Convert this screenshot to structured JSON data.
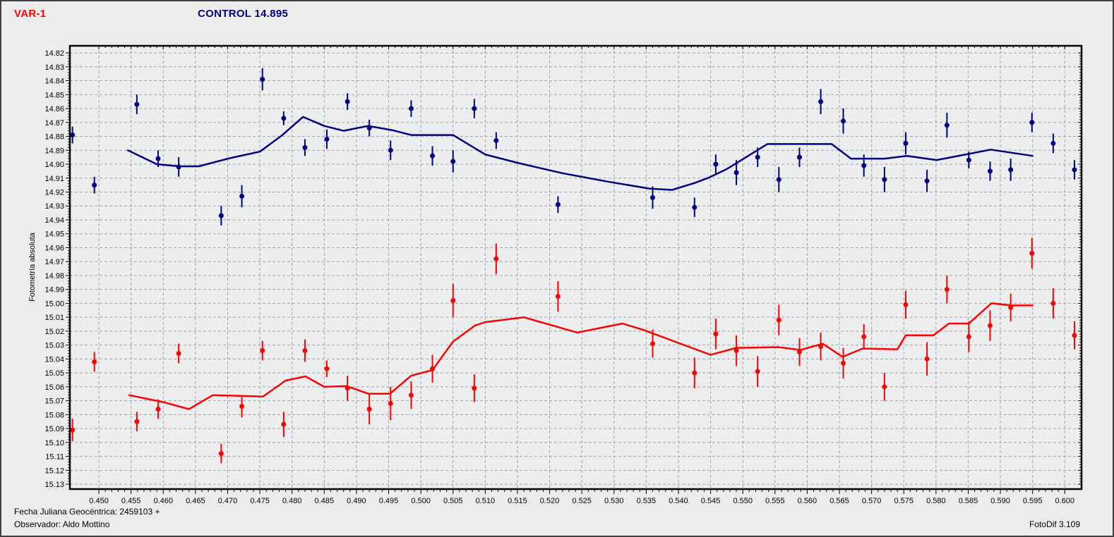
{
  "header": {
    "var_label": "VAR-1",
    "control_label": "CONTROL 14.895"
  },
  "footer": {
    "julian_date_line": "Fecha Juliana Geocéntrica: 2459103 +",
    "observer_line": "Observador: Aldo Mottino",
    "app_version": "FotoDif 3.109"
  },
  "colors": {
    "var_series": "#FF0000",
    "control_series": "#000080",
    "grid": "#A3A3A3",
    "axis": "#000000",
    "window_bg": "#ECECEC",
    "plot_bg": "#ECEDEE"
  },
  "chart_data": {
    "type": "scatter",
    "title": "",
    "xlabel": "",
    "ylabel": "Fotometría absoluta",
    "grid": true,
    "legend_position": "none",
    "x_axis": {
      "label_min": 0.45,
      "label_max": 0.6,
      "label_step": 0.005,
      "minor_step": 0.001,
      "display_min": 0.4455,
      "display_max": 0.6026,
      "tick_label_format": "3-decimals"
    },
    "y_axis": {
      "label_min": 14.82,
      "label_max": 15.13,
      "label_step": 0.01,
      "minor_step": 0.002,
      "display_min": 14.8149,
      "display_max": 15.1335,
      "inverted_magnitude_scale": true,
      "tick_label_format": "2-decimals"
    },
    "series": [
      {
        "key": "control",
        "name": "CONTROL 14.895",
        "color": "#000080",
        "points": [
          [
            0.4459,
            14.879,
            0.006
          ],
          [
            0.4493,
            14.915,
            0.006
          ],
          [
            0.4559,
            14.857,
            0.007
          ],
          [
            0.4592,
            14.896,
            0.006
          ],
          [
            0.4624,
            14.902,
            0.007
          ],
          [
            0.469,
            14.937,
            0.007
          ],
          [
            0.4722,
            14.923,
            0.008
          ],
          [
            0.4754,
            14.839,
            0.008
          ],
          [
            0.4787,
            14.867,
            0.005
          ],
          [
            0.482,
            14.888,
            0.006
          ],
          [
            0.4854,
            14.882,
            0.007
          ],
          [
            0.4886,
            14.855,
            0.006
          ],
          [
            0.492,
            14.874,
            0.006
          ],
          [
            0.4953,
            14.89,
            0.007
          ],
          [
            0.4985,
            14.86,
            0.006
          ],
          [
            0.5018,
            14.894,
            0.007
          ],
          [
            0.505,
            14.898,
            0.008
          ],
          [
            0.5083,
            14.86,
            0.007
          ],
          [
            0.5117,
            14.883,
            0.006
          ],
          [
            0.5213,
            14.929,
            0.006
          ],
          [
            0.536,
            14.924,
            0.008
          ],
          [
            0.5425,
            14.931,
            0.007
          ],
          [
            0.5458,
            14.9,
            0.007
          ],
          [
            0.549,
            14.906,
            0.009
          ],
          [
            0.5523,
            14.895,
            0.007
          ],
          [
            0.5556,
            14.911,
            0.009
          ],
          [
            0.5588,
            14.895,
            0.007
          ],
          [
            0.5621,
            14.855,
            0.009
          ],
          [
            0.5656,
            14.869,
            0.009
          ],
          [
            0.5688,
            14.901,
            0.008
          ],
          [
            0.572,
            14.911,
            0.009
          ],
          [
            0.5753,
            14.885,
            0.008
          ],
          [
            0.5786,
            14.912,
            0.008
          ],
          [
            0.5817,
            14.872,
            0.009
          ],
          [
            0.5851,
            14.897,
            0.006
          ],
          [
            0.5884,
            14.905,
            0.007
          ],
          [
            0.5916,
            14.904,
            0.008
          ],
          [
            0.5949,
            14.87,
            0.007
          ],
          [
            0.5982,
            14.885,
            0.007
          ],
          [
            0.6015,
            14.904,
            0.007
          ]
        ],
        "mean_line": [
          [
            0.4545,
            14.89
          ],
          [
            0.459,
            14.9
          ],
          [
            0.4625,
            14.9015
          ],
          [
            0.4655,
            14.9015
          ],
          [
            0.4705,
            14.8955
          ],
          [
            0.475,
            14.891
          ],
          [
            0.4785,
            14.879
          ],
          [
            0.4817,
            14.866
          ],
          [
            0.485,
            14.8725
          ],
          [
            0.488,
            14.876
          ],
          [
            0.4918,
            14.8725
          ],
          [
            0.4955,
            14.8755
          ],
          [
            0.4985,
            14.879
          ],
          [
            0.505,
            14.879
          ],
          [
            0.51,
            14.893
          ],
          [
            0.515,
            14.899
          ],
          [
            0.522,
            14.9065
          ],
          [
            0.529,
            14.9125
          ],
          [
            0.5355,
            14.9175
          ],
          [
            0.539,
            14.9185
          ],
          [
            0.5425,
            14.9135
          ],
          [
            0.5448,
            14.9095
          ],
          [
            0.5475,
            14.9035
          ],
          [
            0.5538,
            14.8855
          ],
          [
            0.5638,
            14.8855
          ],
          [
            0.5668,
            14.896
          ],
          [
            0.572,
            14.896
          ],
          [
            0.5755,
            14.894
          ],
          [
            0.5801,
            14.897
          ],
          [
            0.5885,
            14.8895
          ],
          [
            0.595,
            14.894
          ]
        ]
      },
      {
        "key": "var",
        "name": "VAR-1",
        "color": "#FF0000",
        "points": [
          [
            0.4459,
            15.091,
            0.008
          ],
          [
            0.4493,
            15.042,
            0.007
          ],
          [
            0.4559,
            15.085,
            0.007
          ],
          [
            0.4592,
            15.076,
            0.007
          ],
          [
            0.4624,
            15.036,
            0.007
          ],
          [
            0.469,
            15.108,
            0.007
          ],
          [
            0.4722,
            15.074,
            0.008
          ],
          [
            0.4754,
            15.034,
            0.007
          ],
          [
            0.4787,
            15.087,
            0.009
          ],
          [
            0.482,
            15.034,
            0.008
          ],
          [
            0.4854,
            15.047,
            0.006
          ],
          [
            0.4886,
            15.061,
            0.009
          ],
          [
            0.492,
            15.076,
            0.011
          ],
          [
            0.4953,
            15.072,
            0.012
          ],
          [
            0.4985,
            15.066,
            0.01
          ],
          [
            0.5018,
            15.047,
            0.01
          ],
          [
            0.505,
            14.998,
            0.012
          ],
          [
            0.5083,
            15.061,
            0.01
          ],
          [
            0.5117,
            14.968,
            0.011
          ],
          [
            0.5213,
            14.995,
            0.011
          ],
          [
            0.536,
            15.029,
            0.01
          ],
          [
            0.5425,
            15.05,
            0.011
          ],
          [
            0.5458,
            15.022,
            0.011
          ],
          [
            0.549,
            15.034,
            0.011
          ],
          [
            0.5523,
            15.049,
            0.011
          ],
          [
            0.5556,
            15.012,
            0.011
          ],
          [
            0.5588,
            15.035,
            0.01
          ],
          [
            0.5621,
            15.031,
            0.01
          ],
          [
            0.5656,
            15.043,
            0.011
          ],
          [
            0.5688,
            15.024,
            0.009
          ],
          [
            0.572,
            15.06,
            0.01
          ],
          [
            0.5753,
            15.001,
            0.01
          ],
          [
            0.5786,
            15.04,
            0.012
          ],
          [
            0.5817,
            14.99,
            0.01
          ],
          [
            0.5851,
            15.024,
            0.011
          ],
          [
            0.5884,
            15.016,
            0.011
          ],
          [
            0.5916,
            15.003,
            0.01
          ],
          [
            0.5949,
            14.964,
            0.011
          ],
          [
            0.5982,
            15.0,
            0.011
          ],
          [
            0.6015,
            15.023,
            0.01
          ]
        ],
        "mean_line": [
          [
            0.4547,
            15.066
          ],
          [
            0.46,
            15.071
          ],
          [
            0.464,
            15.076
          ],
          [
            0.4677,
            15.066
          ],
          [
            0.472,
            15.0665
          ],
          [
            0.4755,
            15.067
          ],
          [
            0.479,
            15.0555
          ],
          [
            0.4821,
            15.0525
          ],
          [
            0.485,
            15.06
          ],
          [
            0.4885,
            15.0595
          ],
          [
            0.4919,
            15.065
          ],
          [
            0.4952,
            15.065
          ],
          [
            0.4985,
            15.052
          ],
          [
            0.5018,
            15.048
          ],
          [
            0.505,
            15.0275
          ],
          [
            0.5084,
            15.016
          ],
          [
            0.51,
            15.0135
          ],
          [
            0.516,
            15.01
          ],
          [
            0.5243,
            15.021
          ],
          [
            0.5313,
            15.0145
          ],
          [
            0.5345,
            15.019
          ],
          [
            0.545,
            15.037
          ],
          [
            0.549,
            15.032
          ],
          [
            0.5555,
            15.0315
          ],
          [
            0.559,
            15.0335
          ],
          [
            0.5624,
            15.029
          ],
          [
            0.5655,
            15.0385
          ],
          [
            0.5686,
            15.0325
          ],
          [
            0.574,
            15.033
          ],
          [
            0.5753,
            15.023
          ],
          [
            0.5796,
            15.023
          ],
          [
            0.582,
            15.0145
          ],
          [
            0.5851,
            15.0145
          ],
          [
            0.5886,
            15.0
          ],
          [
            0.5917,
            15.0015
          ],
          [
            0.595,
            15.0015
          ]
        ]
      }
    ]
  }
}
